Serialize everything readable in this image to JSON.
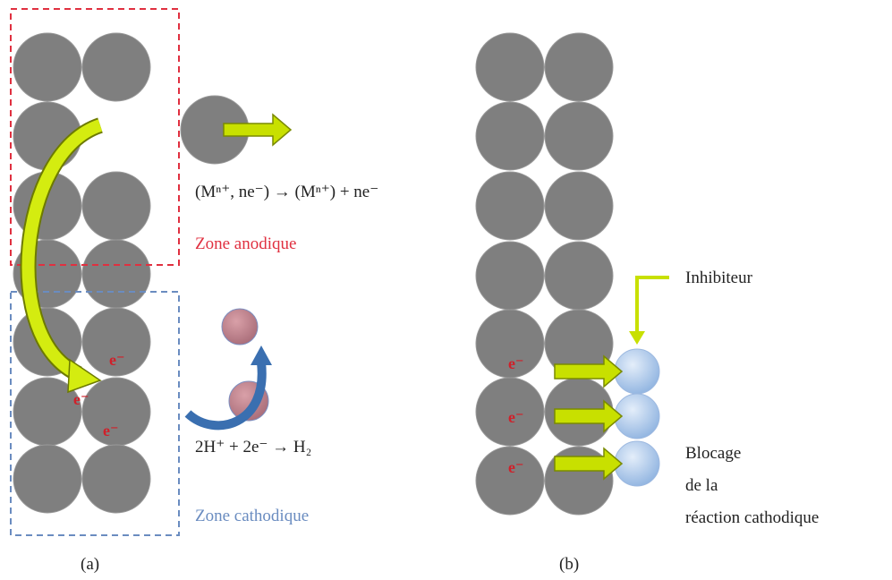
{
  "panel_a": {
    "label": "(a)",
    "anodic_reaction": "(Mⁿ⁺, ne⁻) → (Mⁿ⁺) + ne⁻",
    "anodic_zone": "Zone anodique",
    "cathodic_reaction": "2H⁺ + 2e⁻ → H₂",
    "cathodic_zone": "Zone cathodique",
    "electrons": [
      "e⁻",
      "e⁻",
      "e⁻"
    ]
  },
  "panel_b": {
    "label": "(b)",
    "inhibitor": "Inhibiteur",
    "blocking": [
      "Blocage",
      "de la",
      "réaction cathodique"
    ],
    "electrons": [
      "e⁻",
      "e⁻",
      "e⁻"
    ]
  }
}
